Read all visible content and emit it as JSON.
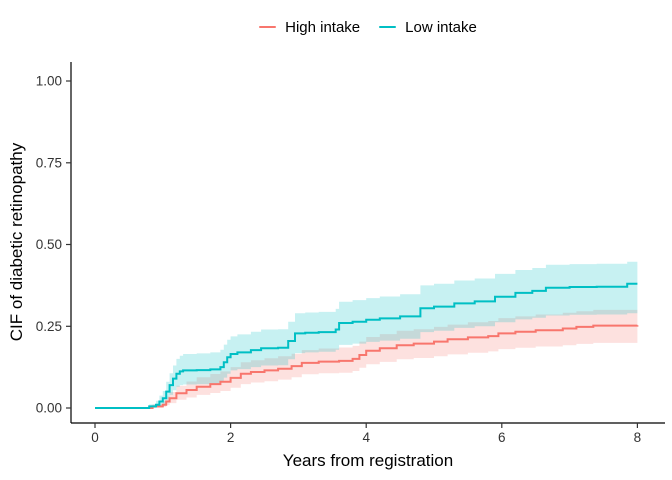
{
  "figure": {
    "background": "#ffffff"
  },
  "legend": {
    "position": "top-center",
    "items": [
      {
        "label": "High intake",
        "color": "#F8766D"
      },
      {
        "label": "Low intake",
        "color": "#00BFC4"
      }
    ]
  },
  "axes": {
    "x_label": "Years from registration",
    "y_label": "CIF of diabetic retinopathy",
    "x_tick_labels": [
      "0",
      "2",
      "4",
      "6",
      "8"
    ],
    "y_tick_labels": [
      "0.00",
      "0.25",
      "0.50",
      "0.75",
      "1.00"
    ],
    "tick_color": "#333333",
    "axis_line_color": "#000000"
  },
  "chart_data": {
    "type": "line",
    "subtype": "step-cumulative-incidence-with-confidence-bands",
    "title": "",
    "xlabel": "Years from registration",
    "ylabel": "CIF of diabetic retinopathy",
    "xlim": [
      -0.35,
      8.45
    ],
    "ylim": [
      0,
      1.04
    ],
    "x_ticks": [
      0,
      2,
      4,
      6,
      8
    ],
    "y_ticks": [
      0,
      0.25,
      0.5,
      0.75,
      1.0
    ],
    "y_tick_labels": [
      "0.00",
      "0.25",
      "0.50",
      "0.75",
      "1.00"
    ],
    "x_tick_labels": [
      "0",
      "2",
      "4",
      "6",
      "8"
    ],
    "grid": false,
    "legend_position": "top",
    "band_opacity": 0.22,
    "series": [
      {
        "name": "High intake",
        "color": "#F8766D",
        "x": [
          0,
          0.85,
          1.0,
          1.05,
          1.1,
          1.2,
          1.35,
          1.5,
          1.7,
          1.85,
          2.0,
          2.15,
          2.3,
          2.5,
          2.7,
          2.9,
          3.05,
          3.3,
          3.6,
          3.8,
          3.9,
          4.0,
          4.2,
          4.45,
          4.7,
          5.0,
          5.2,
          5.5,
          5.8,
          5.95,
          6.2,
          6.5,
          6.9,
          7.1,
          7.35,
          8.0
        ],
        "y": [
          0,
          0.005,
          0.01,
          0.02,
          0.03,
          0.045,
          0.055,
          0.065,
          0.073,
          0.08,
          0.092,
          0.105,
          0.11,
          0.115,
          0.12,
          0.128,
          0.138,
          0.142,
          0.144,
          0.15,
          0.162,
          0.175,
          0.183,
          0.192,
          0.197,
          0.203,
          0.21,
          0.216,
          0.22,
          0.228,
          0.233,
          0.238,
          0.243,
          0.248,
          0.252,
          0.253
        ],
        "lo": [
          0,
          0.001,
          0.004,
          0.009,
          0.015,
          0.025,
          0.032,
          0.04,
          0.046,
          0.052,
          0.062,
          0.073,
          0.078,
          0.082,
          0.087,
          0.094,
          0.103,
          0.106,
          0.108,
          0.113,
          0.123,
          0.134,
          0.141,
          0.149,
          0.153,
          0.158,
          0.164,
          0.169,
          0.173,
          0.18,
          0.184,
          0.188,
          0.192,
          0.196,
          0.199,
          0.2
        ],
        "hi": [
          0,
          0.011,
          0.021,
          0.035,
          0.049,
          0.068,
          0.081,
          0.094,
          0.104,
          0.112,
          0.125,
          0.14,
          0.146,
          0.152,
          0.158,
          0.166,
          0.177,
          0.182,
          0.185,
          0.19,
          0.203,
          0.217,
          0.226,
          0.236,
          0.241,
          0.248,
          0.255,
          0.262,
          0.266,
          0.275,
          0.28,
          0.286,
          0.291,
          0.296,
          0.3,
          0.301
        ]
      },
      {
        "name": "Low intake",
        "color": "#00BFC4",
        "x": [
          0,
          0.8,
          0.9,
          0.95,
          1.0,
          1.05,
          1.1,
          1.15,
          1.2,
          1.25,
          1.3,
          1.5,
          1.7,
          1.85,
          1.9,
          1.95,
          2.0,
          2.1,
          2.3,
          2.45,
          2.7,
          2.85,
          2.95,
          3.1,
          3.3,
          3.55,
          3.6,
          3.8,
          4.0,
          4.2,
          4.5,
          4.8,
          5.0,
          5.3,
          5.6,
          5.9,
          6.2,
          6.45,
          6.65,
          7.0,
          7.4,
          7.85,
          8.0
        ],
        "y": [
          0,
          0.005,
          0.01,
          0.02,
          0.03,
          0.05,
          0.07,
          0.09,
          0.105,
          0.112,
          0.115,
          0.116,
          0.118,
          0.125,
          0.14,
          0.155,
          0.165,
          0.17,
          0.177,
          0.183,
          0.184,
          0.205,
          0.228,
          0.23,
          0.232,
          0.24,
          0.26,
          0.264,
          0.27,
          0.274,
          0.28,
          0.305,
          0.31,
          0.32,
          0.326,
          0.34,
          0.352,
          0.358,
          0.368,
          0.37,
          0.371,
          0.38,
          0.38
        ],
        "lo": [
          0,
          0.001,
          0.003,
          0.008,
          0.013,
          0.026,
          0.04,
          0.054,
          0.065,
          0.07,
          0.072,
          0.073,
          0.075,
          0.081,
          0.093,
          0.105,
          0.115,
          0.119,
          0.125,
          0.13,
          0.131,
          0.149,
          0.168,
          0.17,
          0.172,
          0.178,
          0.193,
          0.197,
          0.202,
          0.206,
          0.212,
          0.232,
          0.236,
          0.245,
          0.25,
          0.262,
          0.271,
          0.276,
          0.283,
          0.285,
          0.286,
          0.29,
          0.29
        ],
        "hi": [
          0,
          0.011,
          0.022,
          0.038,
          0.052,
          0.08,
          0.106,
          0.13,
          0.15,
          0.16,
          0.165,
          0.167,
          0.17,
          0.178,
          0.194,
          0.209,
          0.219,
          0.225,
          0.233,
          0.24,
          0.241,
          0.264,
          0.29,
          0.292,
          0.294,
          0.303,
          0.325,
          0.33,
          0.336,
          0.341,
          0.348,
          0.375,
          0.38,
          0.39,
          0.396,
          0.41,
          0.422,
          0.428,
          0.438,
          0.44,
          0.441,
          0.447,
          0.447
        ]
      }
    ]
  }
}
